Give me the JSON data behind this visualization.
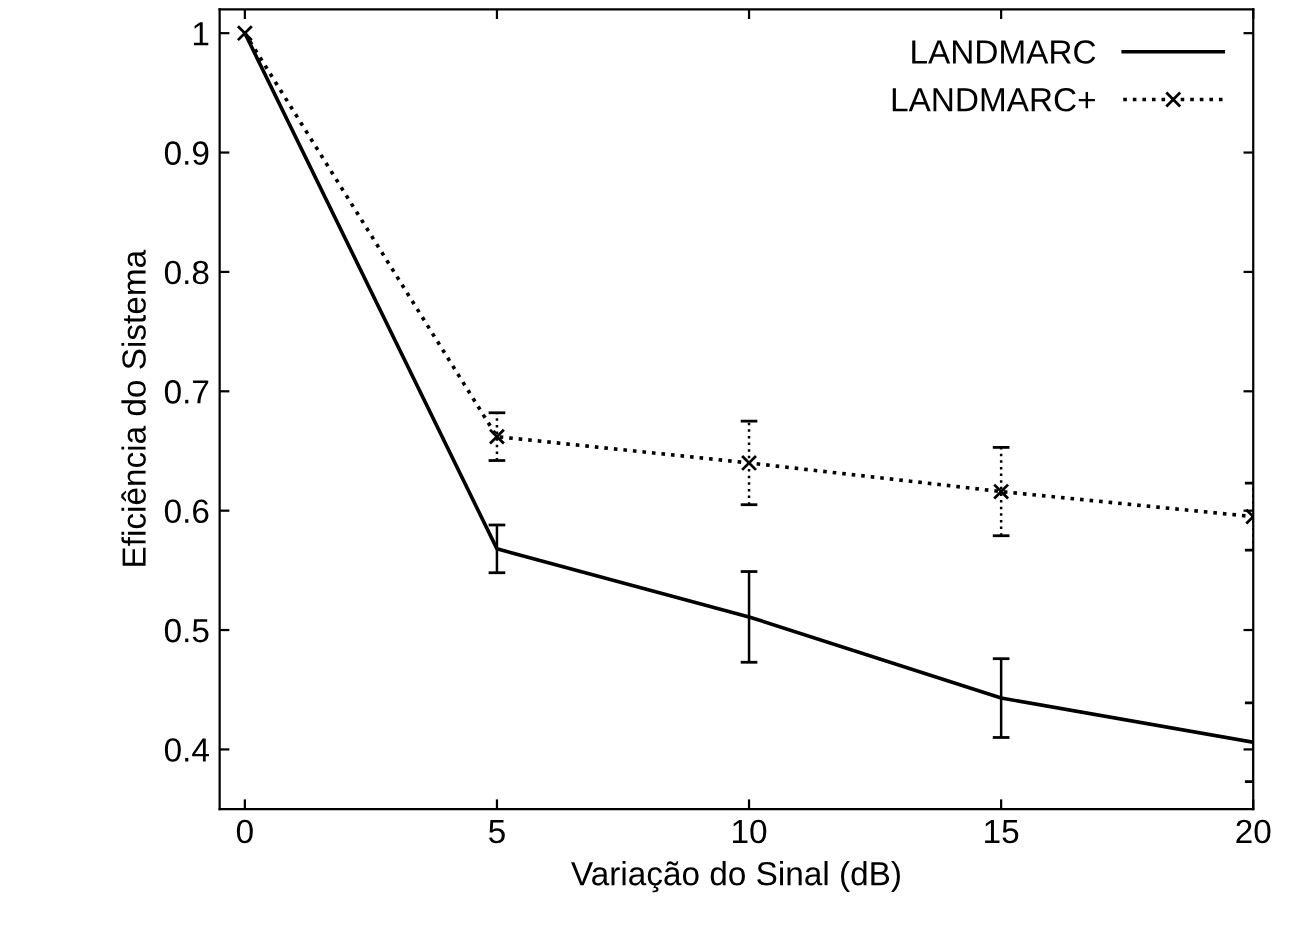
{
  "chart_data": {
    "type": "line",
    "xlabel": "Variação do Sinal (dB)",
    "ylabel": "Eficiência do Sistema",
    "x": [
      0,
      5,
      10,
      15,
      20
    ],
    "series": [
      {
        "name": "LANDMARC",
        "color": "#000000",
        "line_style": "solid",
        "marker": "none",
        "values": [
          1,
          0.568,
          0.511,
          0.443,
          0.406
        ],
        "errors": [
          null,
          0.02,
          0.038,
          0.033,
          0.033
        ]
      },
      {
        "name": "LANDMARC+",
        "color": "#000000",
        "line_style": "dotted",
        "marker": "cross",
        "values": [
          1,
          0.662,
          0.64,
          0.616,
          0.595
        ],
        "errors": [
          null,
          0.02,
          0.035,
          0.037,
          0.028
        ]
      }
    ],
    "xlim": [
      -0.5,
      20
    ],
    "ylim": [
      0.35,
      1.02
    ],
    "xticks": [
      0,
      5,
      10,
      15,
      20
    ],
    "yticks": [
      0.4,
      0.5,
      0.6,
      0.7,
      0.8,
      0.9,
      1
    ],
    "grid": false,
    "legend": "top right"
  }
}
